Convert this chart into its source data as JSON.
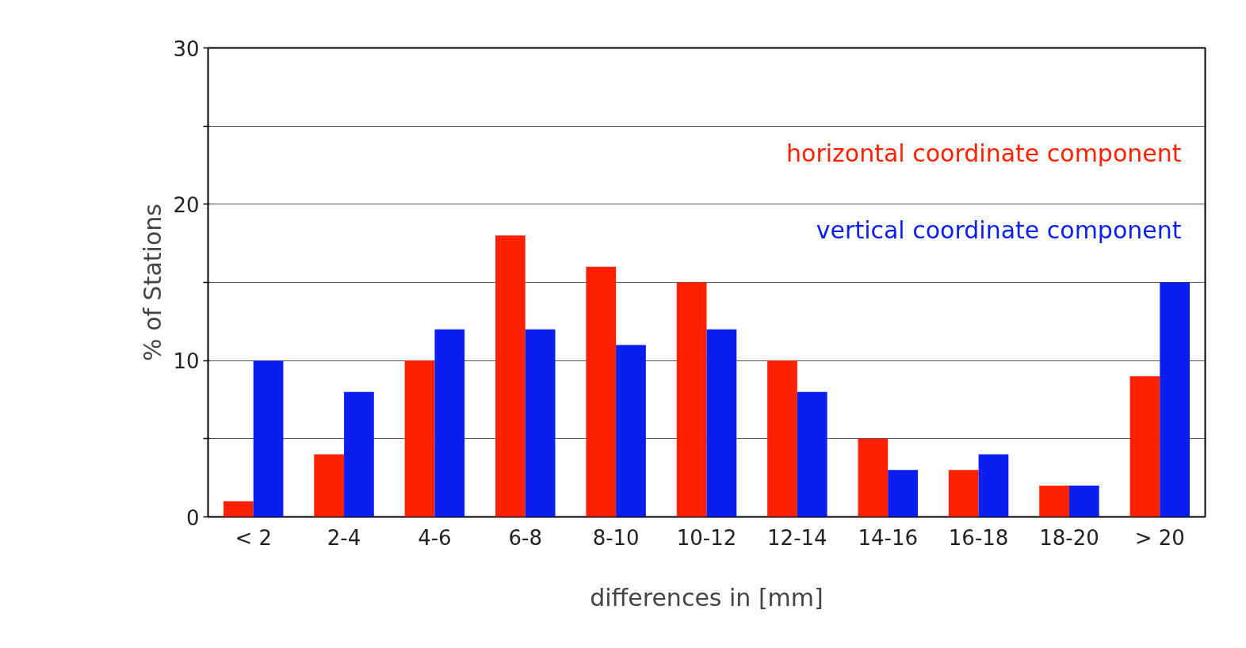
{
  "chart_data": {
    "type": "bar",
    "xlabel": "differences in [mm]",
    "ylabel": "% of Stations",
    "categories": [
      "< 2",
      "2-4",
      "4-6",
      "6-8",
      "8-10",
      "10-12",
      "12-14",
      "14-16",
      "16-18",
      "18-20",
      "> 20"
    ],
    "series": [
      {
        "name": "horizontal coordinate component",
        "color": "#ff2200",
        "values": [
          1,
          4,
          10,
          18,
          16,
          15,
          10,
          5,
          3,
          2,
          9
        ]
      },
      {
        "name": "vertical coordinate component",
        "color": "#0a1ef0",
        "values": [
          10,
          8,
          12,
          12,
          11,
          12,
          8,
          3,
          4,
          2,
          15
        ]
      }
    ],
    "ylim": [
      0,
      30
    ],
    "yticks": [
      0,
      {
        "value": 5,
        "label": null
      },
      10,
      {
        "value": 15,
        "label": null
      },
      20,
      {
        "value": 25,
        "label": null
      },
      30
    ],
    "grid": "y",
    "legend": "top right"
  }
}
